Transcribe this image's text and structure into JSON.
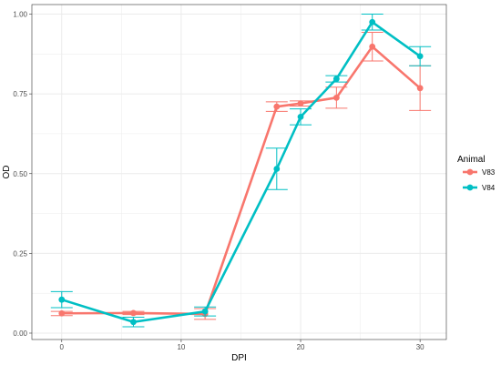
{
  "chart_data": {
    "type": "line",
    "xlabel": "DPI",
    "ylabel": "OD",
    "xlim": [
      -2.5,
      32.2
    ],
    "ylim": [
      -0.02,
      1.03
    ],
    "x_ticks": [
      0,
      10,
      20,
      30
    ],
    "x_tick_labels": [
      "0",
      "10",
      "20",
      "30"
    ],
    "y_ticks": [
      0,
      0.25,
      0.5,
      0.75,
      1.0
    ],
    "y_tick_labels": [
      "0.00",
      "0.25",
      "0.50",
      "0.75",
      "1.00"
    ],
    "grid": true,
    "legend": {
      "title": "Animal",
      "position": "right"
    },
    "series": [
      {
        "name": "V83",
        "color": "#F8766D",
        "points": [
          {
            "x": 0,
            "y": 0.062,
            "ymin": 0.055,
            "ymax": 0.068
          },
          {
            "x": 6,
            "y": 0.063,
            "ymin": 0.058,
            "ymax": 0.068
          },
          {
            "x": 12,
            "y": 0.06,
            "ymin": 0.043,
            "ymax": 0.077
          },
          {
            "x": 18,
            "y": 0.71,
            "ymin": 0.695,
            "ymax": 0.725
          },
          {
            "x": 20,
            "y": 0.72,
            "ymin": 0.712,
            "ymax": 0.728
          },
          {
            "x": 23,
            "y": 0.738,
            "ymin": 0.705,
            "ymax": 0.771
          },
          {
            "x": 26,
            "y": 0.898,
            "ymin": 0.853,
            "ymax": 0.943
          },
          {
            "x": 30,
            "y": 0.768,
            "ymin": 0.698,
            "ymax": 0.838
          }
        ]
      },
      {
        "name": "V84",
        "color": "#00BFC4",
        "points": [
          {
            "x": 0,
            "y": 0.105,
            "ymin": 0.08,
            "ymax": 0.13
          },
          {
            "x": 6,
            "y": 0.035,
            "ymin": 0.02,
            "ymax": 0.05
          },
          {
            "x": 12,
            "y": 0.068,
            "ymin": 0.054,
            "ymax": 0.082
          },
          {
            "x": 18,
            "y": 0.515,
            "ymin": 0.45,
            "ymax": 0.58
          },
          {
            "x": 20,
            "y": 0.678,
            "ymin": 0.653,
            "ymax": 0.703
          },
          {
            "x": 23,
            "y": 0.797,
            "ymin": 0.787,
            "ymax": 0.807
          },
          {
            "x": 26,
            "y": 0.975,
            "ymin": 0.95,
            "ymax": 1.0
          },
          {
            "x": 30,
            "y": 0.868,
            "ymin": 0.838,
            "ymax": 0.898
          }
        ]
      }
    ]
  }
}
